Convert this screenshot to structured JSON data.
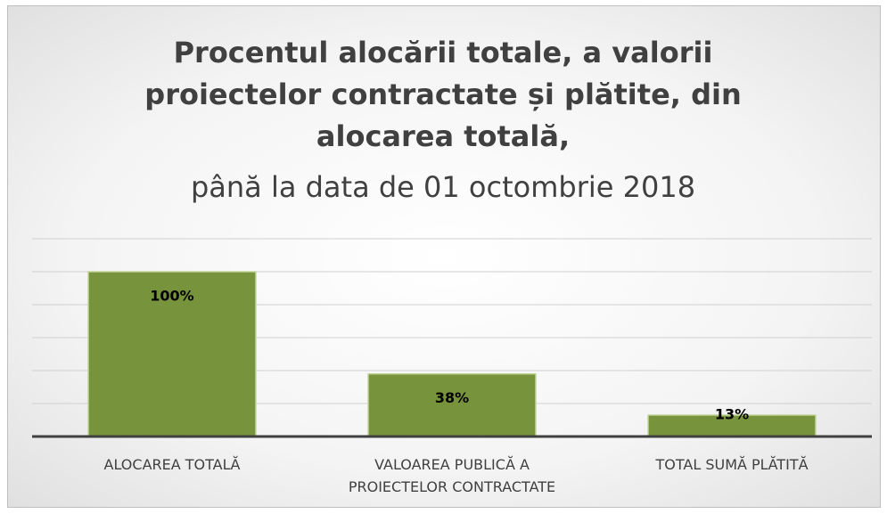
{
  "chart_data": {
    "type": "bar",
    "title": "Procentul alocării totale, a valorii proiectelor contractate și plătite, din alocarea totală,",
    "subtitle": "până la data de 01 octombrie 2018",
    "categories": [
      "ALOCAREA TOTALĂ",
      "VALOAREA PUBLICĂ A PROIECTELOR CONTRACTATE",
      "TOTAL SUMĂ PLĂTITĂ"
    ],
    "values": [
      100,
      38,
      13
    ],
    "value_labels": [
      "100%",
      "38%",
      "13%"
    ],
    "color": "#77933c",
    "ylim": [
      0,
      120
    ],
    "yticks": [
      0,
      20,
      40,
      60,
      80,
      100,
      120
    ],
    "grid": true
  }
}
